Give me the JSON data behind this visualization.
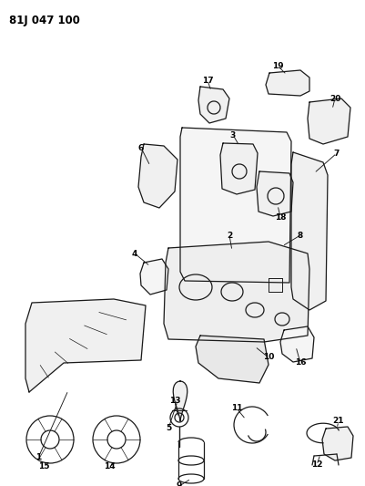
{
  "title": "81J 047 100",
  "background_color": "#ffffff",
  "line_color": "#000000",
  "fig_width": 4.02,
  "fig_height": 5.33,
  "dpi": 100
}
